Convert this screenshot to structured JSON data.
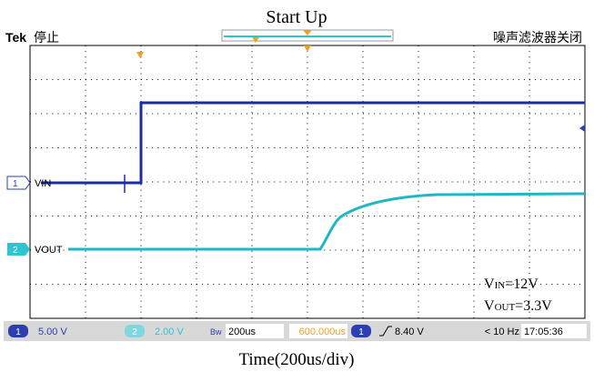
{
  "title": "Start Up",
  "header": {
    "brand": "Tek",
    "state": "停止",
    "filter": "噪声滤波器关闭"
  },
  "channels": [
    {
      "marker": "1",
      "label": "VIN"
    },
    {
      "marker": "2",
      "label": "VOUT"
    }
  ],
  "annotations": [
    {
      "main": "V",
      "sub": "IN",
      "rest": "=12V"
    },
    {
      "main": "V",
      "sub": "OUT",
      "rest": "=3.3V"
    }
  ],
  "status": {
    "ch1_num": "1",
    "ch1_scale": "5.00 V",
    "ch2_num": "2",
    "ch2_scale": "2.00 V",
    "bw": "Bw",
    "timebase": "200us",
    "position": "600.000us",
    "trig_ch": "1",
    "trig_level": "8.40 V",
    "freq": "< 10 Hz",
    "time": "17:05:36"
  },
  "caption": "Time(200us/div)"
}
